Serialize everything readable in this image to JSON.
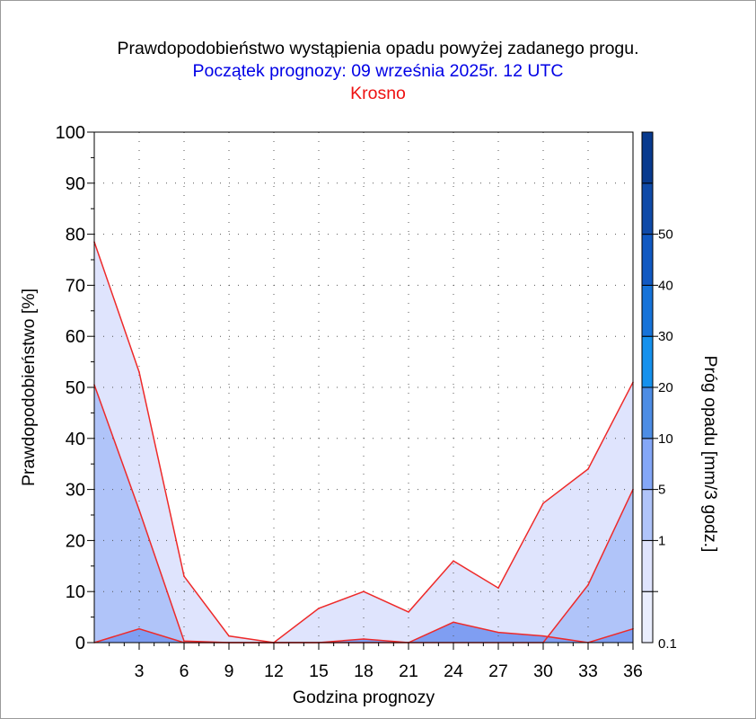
{
  "chart_data": {
    "type": "area",
    "title": "Prawdopodobieństwo wystąpienia opadu powyżej zadanego progu.",
    "subtitle": "Początek prognozy: 09 września 2025r. 12 UTC",
    "location": "Krosno",
    "xlabel": "Godzina prognozy",
    "ylabel": "Prawdopodobieństwo [%]",
    "colorbar_label": "Próg opadu [mm/3 godz.]",
    "x": [
      0,
      3,
      6,
      9,
      12,
      15,
      18,
      21,
      24,
      27,
      30,
      33,
      36
    ],
    "x_ticks": [
      "3",
      "6",
      "9",
      "12",
      "15",
      "18",
      "21",
      "24",
      "27",
      "30",
      "33",
      "36"
    ],
    "y_ticks": [
      "0",
      "10",
      "20",
      "30",
      "40",
      "50",
      "60",
      "70",
      "80",
      "90",
      "100"
    ],
    "xlim": [
      0,
      36
    ],
    "ylim": [
      0,
      100
    ],
    "grid": true,
    "series": [
      {
        "name": "0.1",
        "color": "#dfe4fd",
        "values": [
          78.5,
          53,
          13,
          1.3,
          0,
          6.7,
          10,
          6,
          16,
          10.7,
          27.3,
          34,
          51
        ]
      },
      {
        "name": "1",
        "color": "#b0c4f9",
        "values": [
          50.5,
          26,
          0.3,
          0,
          0,
          0,
          0,
          0,
          0,
          0,
          0,
          11.3,
          30
        ]
      },
      {
        "name": "5",
        "color": "#7f9ef2",
        "values": [
          0,
          2.7,
          0,
          0,
          0,
          0,
          0.7,
          0,
          4,
          2,
          1.3,
          0,
          2.7
        ]
      }
    ],
    "colorbar": {
      "ticks": [
        "0.1",
        "1",
        "5",
        "10",
        "20",
        "30",
        "40",
        "50"
      ],
      "colors": [
        "#eaeefe",
        "#dfe4fd",
        "#b0c4f9",
        "#84a7f7",
        "#4d8de5",
        "#1591ed",
        "#1673d9",
        "#1159c2",
        "#0f4aa8",
        "#083a8e"
      ]
    }
  }
}
